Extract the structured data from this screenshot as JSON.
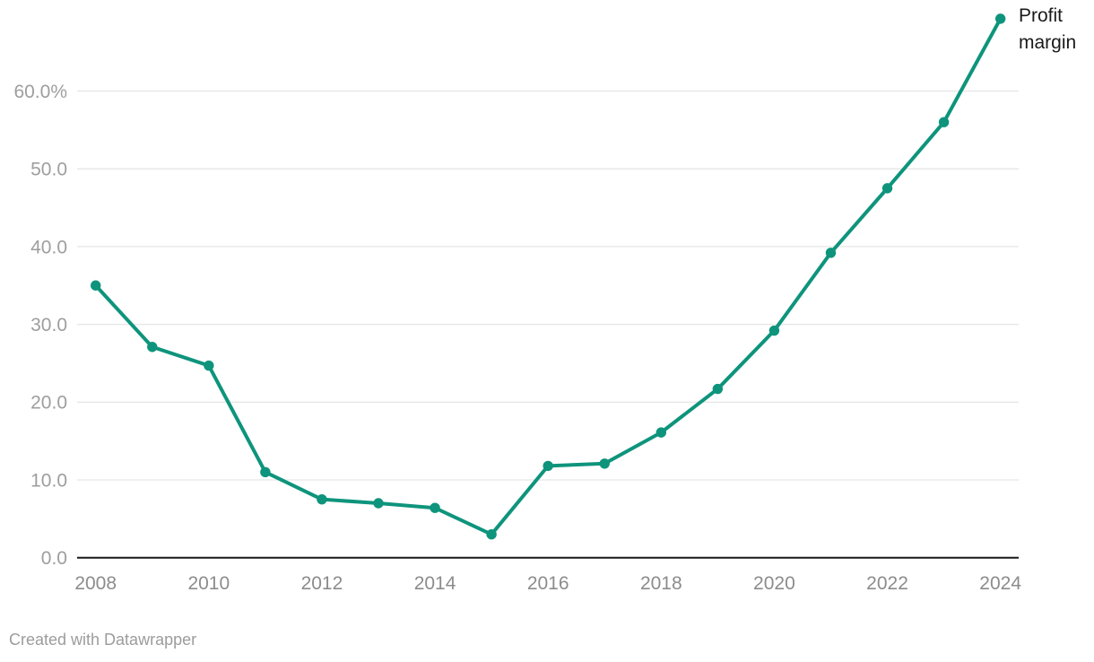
{
  "chart_data": {
    "type": "line",
    "x": [
      2008,
      2009,
      2010,
      2011,
      2012,
      2013,
      2014,
      2015,
      2016,
      2017,
      2018,
      2019,
      2020,
      2021,
      2022,
      2023,
      2024
    ],
    "series": [
      {
        "name": "Profit margin",
        "values": [
          35.0,
          27.1,
          24.7,
          11.0,
          7.5,
          7.0,
          6.4,
          3.0,
          11.8,
          12.1,
          16.1,
          21.7,
          29.2,
          39.2,
          47.5,
          56.0,
          69.3
        ]
      }
    ],
    "title": "",
    "xlabel": "",
    "ylabel": "",
    "xlim": [
      2008,
      2024
    ],
    "ylim": [
      0,
      71.7
    ],
    "grid": "horizontal",
    "legend_position": "end-of-line",
    "x_ticks": [
      {
        "value": 2008,
        "label": "2008"
      },
      {
        "value": 2010,
        "label": "2010"
      },
      {
        "value": 2012,
        "label": "2012"
      },
      {
        "value": 2014,
        "label": "2014"
      },
      {
        "value": 2016,
        "label": "2016"
      },
      {
        "value": 2018,
        "label": "2018"
      },
      {
        "value": 2020,
        "label": "2020"
      },
      {
        "value": 2022,
        "label": "2022"
      },
      {
        "value": 2024,
        "label": "2024"
      }
    ],
    "y_ticks": [
      {
        "value": 60,
        "label": "60.0%"
      },
      {
        "value": 50,
        "label": "50.0"
      },
      {
        "value": 40,
        "label": "40.0"
      },
      {
        "value": 30,
        "label": "30.0"
      },
      {
        "value": 20,
        "label": "20.0"
      },
      {
        "value": 10,
        "label": "10.0"
      },
      {
        "value": 0,
        "label": "0.0"
      }
    ],
    "colors": {
      "line": "#0e947c",
      "point": "#0e947c",
      "grid": "#e6e6e6",
      "axis": "#191919",
      "y_tick_label": "#9e9e9e",
      "x_tick_label": "#8c8c8c",
      "legend_text": "#1a1a1a"
    }
  },
  "legend": {
    "label": "Profit margin"
  },
  "footer": {
    "credit": "Created with Datawrapper"
  }
}
